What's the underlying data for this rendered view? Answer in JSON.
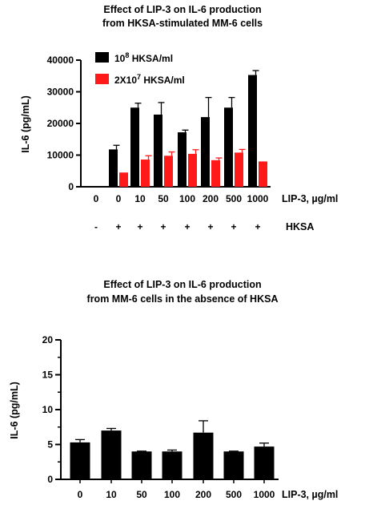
{
  "chart_data": [
    {
      "type": "bar",
      "title_lines": [
        "Effect of LIP-3 on IL-6 production",
        "from HKSA-stimulated MM-6 cells"
      ],
      "ylabel": "IL-6 (pg/mL)",
      "xlabel": "LIP-3, µg/ml",
      "ylim": [
        0,
        40000
      ],
      "yticks": [
        "0",
        "10000",
        "20000",
        "30000",
        "40000"
      ],
      "categories": [
        "0",
        "0",
        "10",
        "50",
        "100",
        "200",
        "500",
        "1000"
      ],
      "hksa_label": "HKSA",
      "hksa_signs": [
        "-",
        "+",
        "+",
        "+",
        "+",
        "+",
        "+",
        "+"
      ],
      "series": [
        {
          "name_base": "10",
          "name_sup": "8",
          "name_rest": " HKSA/ml",
          "color": "#000000",
          "values": [
            0,
            11800,
            25000,
            22800,
            17200,
            22000,
            25000,
            35300
          ],
          "errors": [
            0,
            1300,
            1400,
            3800,
            700,
            6200,
            3200,
            1400
          ]
        },
        {
          "name_base": "2X10",
          "name_sup": "7",
          "name_rest": " HKSA/ml",
          "color": "#ff1a1a",
          "values": [
            0,
            4500,
            8600,
            9800,
            10400,
            8400,
            10800,
            8000
          ],
          "errors": [
            0,
            0,
            1200,
            1200,
            1300,
            700,
            1000,
            0
          ]
        }
      ]
    },
    {
      "type": "bar",
      "title_lines": [
        "Effect of LIP-3 on IL-6 production",
        "from MM-6 cells in the absence of HKSA"
      ],
      "ylabel": "IL-6 (pg/mL)",
      "xlabel": "LIP-3, µg/ml",
      "ylim": [
        0,
        20
      ],
      "yticks": [
        "0",
        "5",
        "10",
        "15",
        "20"
      ],
      "categories": [
        "0",
        "10",
        "50",
        "100",
        "200",
        "500",
        "1000"
      ],
      "series": [
        {
          "color": "#000000",
          "values": [
            5.3,
            7.0,
            4.0,
            4.0,
            6.7,
            4.0,
            4.7
          ],
          "errors": [
            0.4,
            0.3,
            0.05,
            0.2,
            1.7,
            0.05,
            0.5
          ]
        }
      ]
    }
  ]
}
